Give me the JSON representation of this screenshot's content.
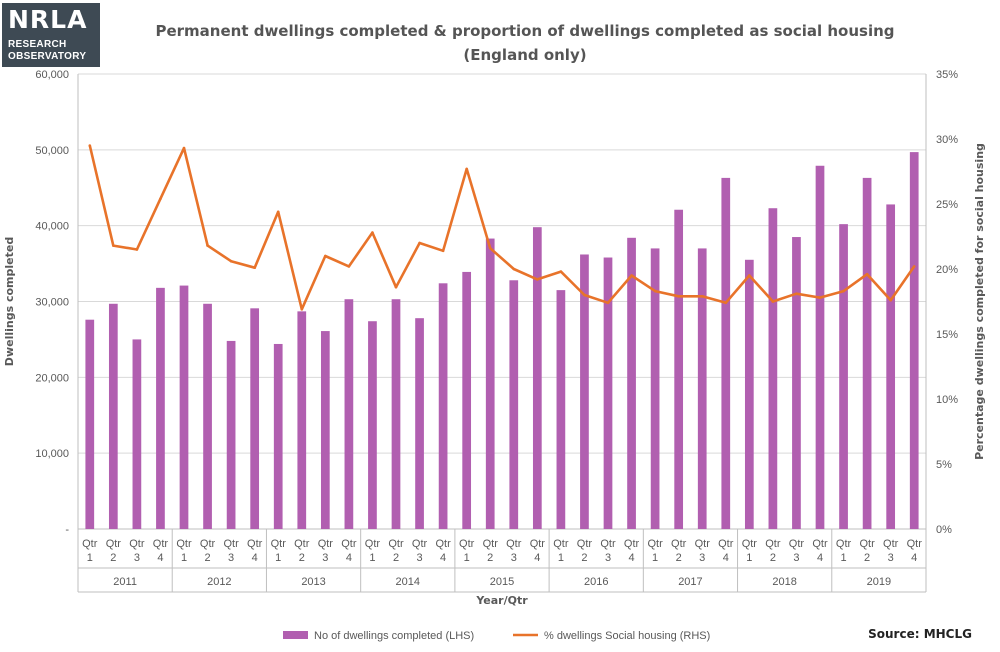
{
  "logo": {
    "main": "NRLA",
    "line1": "RESEARCH",
    "line2": "OBSERVATORY"
  },
  "source": "Source: MHCLG",
  "chart_data": {
    "type": "bar",
    "title": "Permanent dwellings completed & proportion of dwellings completed as social housing",
    "subtitle": "(England only)",
    "xlabel": "Year/Qtr",
    "ylabel": "Dwellings completed",
    "y2label": "Percentage dwellings completed for social housing",
    "ylim": [
      0,
      60000
    ],
    "y2lim": [
      0,
      0.35
    ],
    "yticks": [
      "-",
      "10,000",
      "20,000",
      "30,000",
      "40,000",
      "50,000",
      "60,000"
    ],
    "y2ticks": [
      "0%",
      "5%",
      "10%",
      "15%",
      "20%",
      "25%",
      "30%",
      "35%"
    ],
    "quarter_labels": [
      "Qtr 1",
      "Qtr 2",
      "Qtr 3",
      "Qtr 4"
    ],
    "years": [
      "2011",
      "2012",
      "2013",
      "2014",
      "2015",
      "2016",
      "2017",
      "2018",
      "2019"
    ],
    "grid": true,
    "legend_position": "bottom",
    "series": [
      {
        "name": "No of dwellings completed (LHS)",
        "type": "bar",
        "axis": "left",
        "color": "#b15fb0",
        "values": [
          27600,
          29700,
          25000,
          31800,
          32100,
          29700,
          24800,
          29100,
          24400,
          28700,
          26100,
          30300,
          27400,
          30300,
          27800,
          32400,
          33900,
          38300,
          32800,
          39800,
          31500,
          36200,
          35800,
          38400,
          37000,
          42100,
          37000,
          46300,
          35500,
          42300,
          38500,
          47900,
          40200,
          46300,
          42800,
          49700
        ]
      },
      {
        "name": "% dwellings Social housing (RHS)",
        "type": "line",
        "axis": "right",
        "color": "#e8732a",
        "values": [
          0.295,
          0.218,
          0.215,
          0.254,
          0.293,
          0.218,
          0.206,
          0.201,
          0.244,
          0.169,
          0.21,
          0.202,
          0.228,
          0.186,
          0.22,
          0.214,
          0.277,
          0.216,
          0.2,
          0.192,
          0.198,
          0.18,
          0.174,
          0.195,
          0.183,
          0.179,
          0.179,
          0.174,
          0.195,
          0.175,
          0.181,
          0.178,
          0.183,
          0.196,
          0.176,
          0.202
        ]
      }
    ]
  }
}
